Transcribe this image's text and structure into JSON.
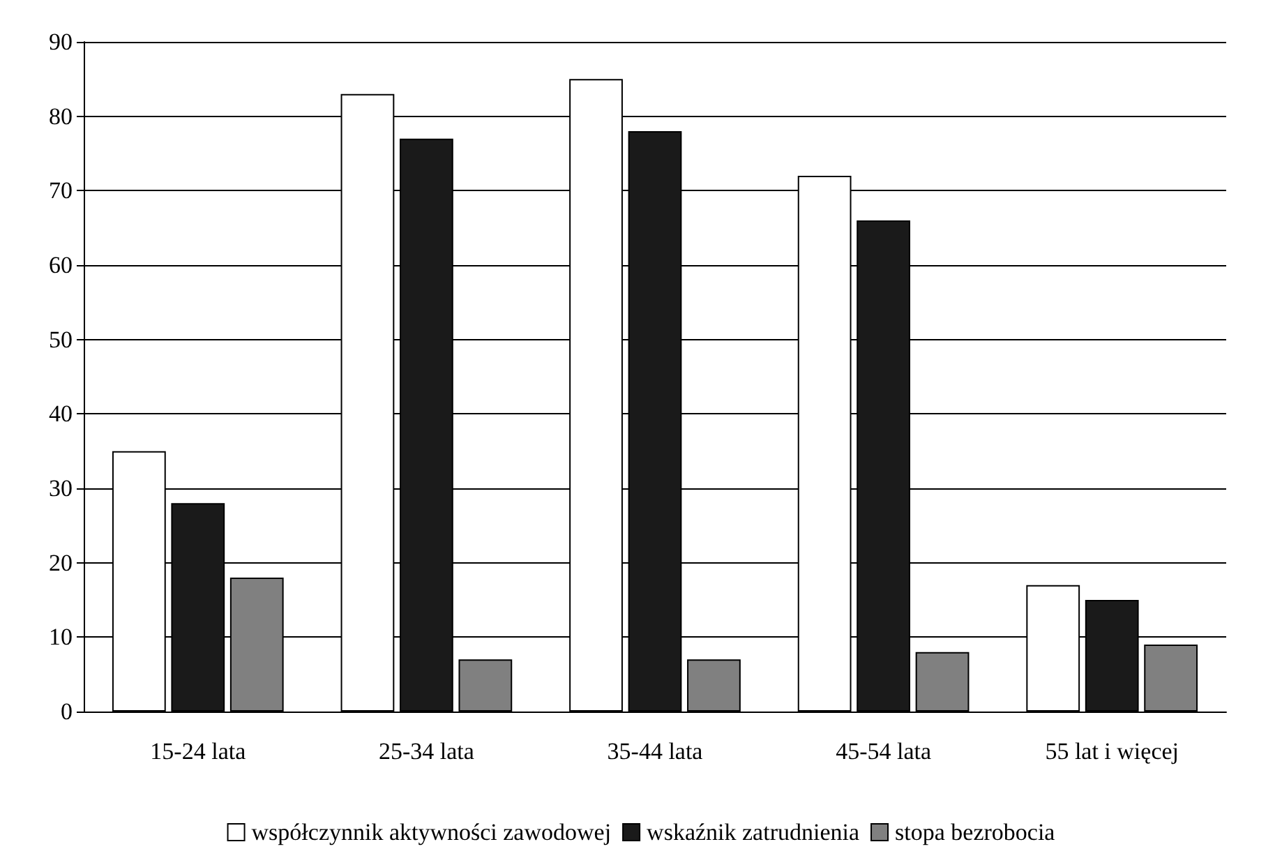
{
  "chart_data": {
    "type": "bar",
    "categories": [
      "15-24 lata",
      "25-34 lata",
      "35-44 lata",
      "45-54 lata",
      "55 lat i więcej"
    ],
    "series": [
      {
        "name": "współczynnik aktywności zawodowej",
        "color": "#ffffff",
        "values": [
          35,
          83,
          85,
          72,
          17
        ]
      },
      {
        "name": "wskaźnik zatrudnienia",
        "color": "#1a1a1a",
        "values": [
          28,
          77,
          78,
          66,
          15
        ]
      },
      {
        "name": "stopa bezrobocia",
        "color": "#808080",
        "values": [
          18,
          7,
          7,
          8,
          9
        ]
      }
    ],
    "ylim": [
      0,
      90
    ],
    "yticks": [
      0,
      10,
      20,
      30,
      40,
      50,
      60,
      70,
      80,
      90
    ],
    "grid": true,
    "legend": "bottom"
  }
}
